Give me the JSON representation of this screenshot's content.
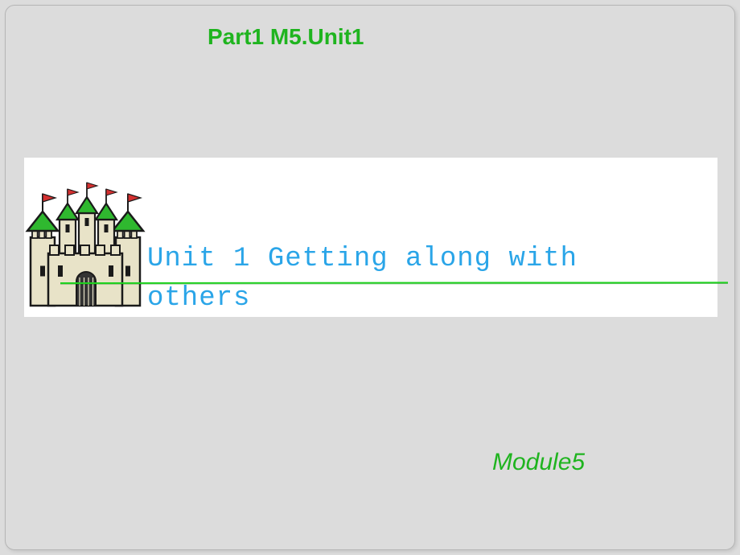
{
  "header": {
    "text": "Part1 M5.Unit1",
    "color": "#1fb41f",
    "fontsize": 28
  },
  "band": {
    "background": "#ffffff"
  },
  "castle": {
    "wall_color": "#e8e3c8",
    "outline_color": "#1a1a1a",
    "roof_color": "#2fb82f",
    "flag_color": "#d43030",
    "door_color": "#333333"
  },
  "title": {
    "text": "Unit 1  Getting along with others",
    "color": "#2aa5e8",
    "fontsize": 34
  },
  "underline": {
    "color": "#1fd11f",
    "shadow": "#0a7a0a"
  },
  "module": {
    "text": "Module5",
    "color": "#1fb41f",
    "fontsize": 30
  },
  "page_bg": "#dcdcdc"
}
